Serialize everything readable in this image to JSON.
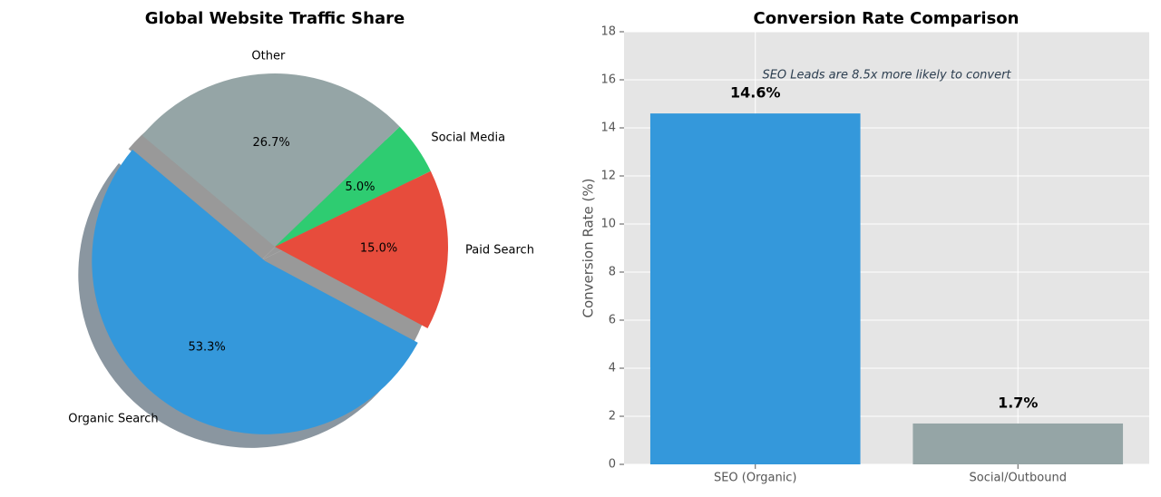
{
  "chart_data": [
    {
      "type": "pie",
      "title": "Global Website Traffic Share",
      "categories": [
        "Organic Search",
        "Paid Search",
        "Social Media",
        "Other"
      ],
      "values": [
        53.3,
        15.0,
        5.0,
        26.7
      ],
      "value_labels": [
        "53.3%",
        "15.0%",
        "5.0%",
        "26.7%"
      ],
      "colors": [
        "#3498db",
        "#e74c3c",
        "#2ecc71",
        "#95a5a6"
      ]
    },
    {
      "type": "bar",
      "title": "Conversion Rate Comparison",
      "ylabel": "Conversion Rate (%)",
      "annotation": "SEO Leads are 8.5x more likely to convert",
      "categories": [
        "SEO (Organic)",
        "Social/Outbound"
      ],
      "values": [
        14.6,
        1.7
      ],
      "value_labels": [
        "14.6%",
        "1.7%"
      ],
      "colors": [
        "#3498db",
        "#95a5a6"
      ],
      "ylim": [
        0,
        18
      ],
      "yticks": [
        0,
        2,
        4,
        6,
        8,
        10,
        12,
        14,
        16,
        18
      ],
      "grid": true
    }
  ]
}
